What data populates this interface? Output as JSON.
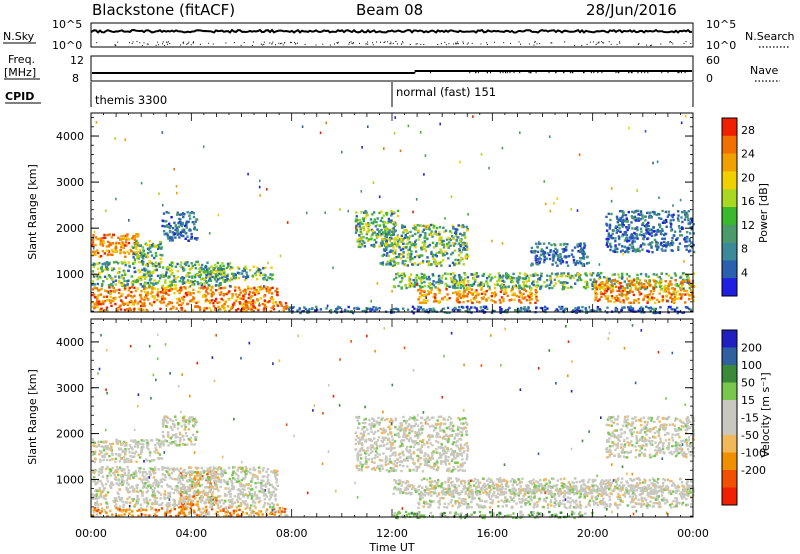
{
  "header": {
    "station": "Blackstone (fitACF)",
    "beam": "Beam 08",
    "date": "28/Jun/2016"
  },
  "status_panel": {
    "left_top_label": "N.Sky",
    "left_top_ticks": [
      "10^5",
      "10^0"
    ],
    "right_top_label": "N.Search",
    "right_top_ticks": [
      "10^5",
      "10^0"
    ],
    "freq_label": "Freq.",
    "freq_unit": "[MHz]",
    "freq_ticks": [
      "12",
      "8"
    ],
    "nave_label": "Nave",
    "nave_ticks": [
      "60",
      "0"
    ],
    "cpid_label": "CPID",
    "cpid_modes": [
      {
        "label": "themis 3300",
        "start_hour": 0
      },
      {
        "label": "normal (fast) 151",
        "start_hour": 12
      }
    ]
  },
  "colors": {
    "power_scale": [
      "#2020e0",
      "#2a60b0",
      "#3a8a9a",
      "#4a9a6a",
      "#3cb82c",
      "#a8d820",
      "#f0d000",
      "#f0a000",
      "#f07000",
      "#ee2000"
    ],
    "velocity_scale": [
      "#f02000",
      "#f05000",
      "#f09000",
      "#f0b858",
      "#c8c8c0",
      "#c8c8c0",
      "#78c850",
      "#3a8a3a",
      "#3060a0",
      "#2020c0"
    ]
  },
  "chart_data": [
    {
      "type": "heatmap",
      "panel": "power",
      "xlabel": "",
      "ylabel": "Slant Range [km]",
      "x_range_hours": [
        0,
        24
      ],
      "ylim": [
        180,
        4500
      ],
      "x_ticks": [
        "00:00",
        "04:00",
        "08:00",
        "12:00",
        "16:00",
        "20:00",
        "00:00"
      ],
      "y_ticks": [
        1000,
        2000,
        3000,
        4000
      ],
      "colorbar": {
        "label": "Power [dB]",
        "ticks": [
          "4",
          "8",
          "12",
          "16",
          "20",
          "24",
          "28"
        ],
        "range": [
          0,
          30
        ]
      },
      "regions": [
        {
          "hours": [
            0.0,
            7.8
          ],
          "range_km": [
            220,
            420
          ],
          "level": "high"
        },
        {
          "hours": [
            0.0,
            7.4
          ],
          "range_km": [
            420,
            760
          ],
          "level": "high"
        },
        {
          "hours": [
            0.0,
            5.5
          ],
          "range_km": [
            760,
            1300
          ],
          "level": "medium"
        },
        {
          "hours": [
            0.0,
            1.9
          ],
          "range_km": [
            1400,
            1900
          ],
          "level": "high"
        },
        {
          "hours": [
            1.6,
            2.8
          ],
          "range_km": [
            1250,
            1750
          ],
          "level": "medium"
        },
        {
          "hours": [
            2.8,
            4.2
          ],
          "range_km": [
            1750,
            2400
          ],
          "level": "low"
        },
        {
          "hours": [
            4.2,
            7.2
          ],
          "range_km": [
            900,
            1200
          ],
          "level": "medium"
        },
        {
          "hours": [
            10.5,
            12.2
          ],
          "range_km": [
            1600,
            2400
          ],
          "level": "medium"
        },
        {
          "hours": [
            11.5,
            15.0
          ],
          "range_km": [
            1200,
            2100
          ],
          "level": "medium"
        },
        {
          "hours": [
            12.0,
            24.0
          ],
          "range_km": [
            700,
            1050
          ],
          "level": "medium"
        },
        {
          "hours": [
            13.0,
            17.8
          ],
          "range_km": [
            400,
            700
          ],
          "level": "high"
        },
        {
          "hours": [
            20.0,
            24.0
          ],
          "range_km": [
            400,
            900
          ],
          "level": "high"
        },
        {
          "hours": [
            17.5,
            19.8
          ],
          "range_km": [
            1200,
            1700
          ],
          "level": "low"
        },
        {
          "hours": [
            20.5,
            24.0
          ],
          "range_km": [
            1500,
            2400
          ],
          "level": "low"
        },
        {
          "hours": [
            7.8,
            24.0
          ],
          "range_km": [
            180,
            320
          ],
          "level": "low"
        }
      ]
    },
    {
      "type": "heatmap",
      "panel": "velocity",
      "xlabel": "Time UT",
      "ylabel": "Slant Range [km]",
      "x_range_hours": [
        0,
        24
      ],
      "ylim": [
        180,
        4500
      ],
      "x_ticks": [
        "00:00",
        "04:00",
        "08:00",
        "12:00",
        "16:00",
        "20:00",
        "00:00"
      ],
      "y_ticks": [
        1000,
        2000,
        3000,
        4000
      ],
      "colorbar": {
        "label": "Velocity [m s⁻¹]",
        "ticks": [
          "200",
          "100",
          "50",
          "15",
          "-15",
          "-50",
          "-100",
          "-200"
        ],
        "range": [
          -250,
          250
        ]
      },
      "regions": [
        {
          "hours": [
            0.0,
            7.8
          ],
          "range_km": [
            220,
            420
          ],
          "level": "receding"
        },
        {
          "hours": [
            3.5,
            5.0
          ],
          "range_km": [
            420,
            1200
          ],
          "level": "receding"
        },
        {
          "hours": [
            0.0,
            7.4
          ],
          "range_km": [
            420,
            1300
          ],
          "level": "slow"
        },
        {
          "hours": [
            0.0,
            2.8
          ],
          "range_km": [
            1400,
            1900
          ],
          "level": "slow"
        },
        {
          "hours": [
            2.8,
            4.2
          ],
          "range_km": [
            1750,
            2400
          ],
          "level": "slow"
        },
        {
          "hours": [
            10.5,
            15.0
          ],
          "range_km": [
            1200,
            2400
          ],
          "level": "slow"
        },
        {
          "hours": [
            12.0,
            24.0
          ],
          "range_km": [
            700,
            1050
          ],
          "level": "slow"
        },
        {
          "hours": [
            13.0,
            24.0
          ],
          "range_km": [
            400,
            900
          ],
          "level": "slow"
        },
        {
          "hours": [
            20.5,
            24.0
          ],
          "range_km": [
            1500,
            2400
          ],
          "level": "slow"
        },
        {
          "hours": [
            12.0,
            20.0
          ],
          "range_km": [
            180,
            320
          ],
          "level": "approaching"
        }
      ]
    }
  ]
}
